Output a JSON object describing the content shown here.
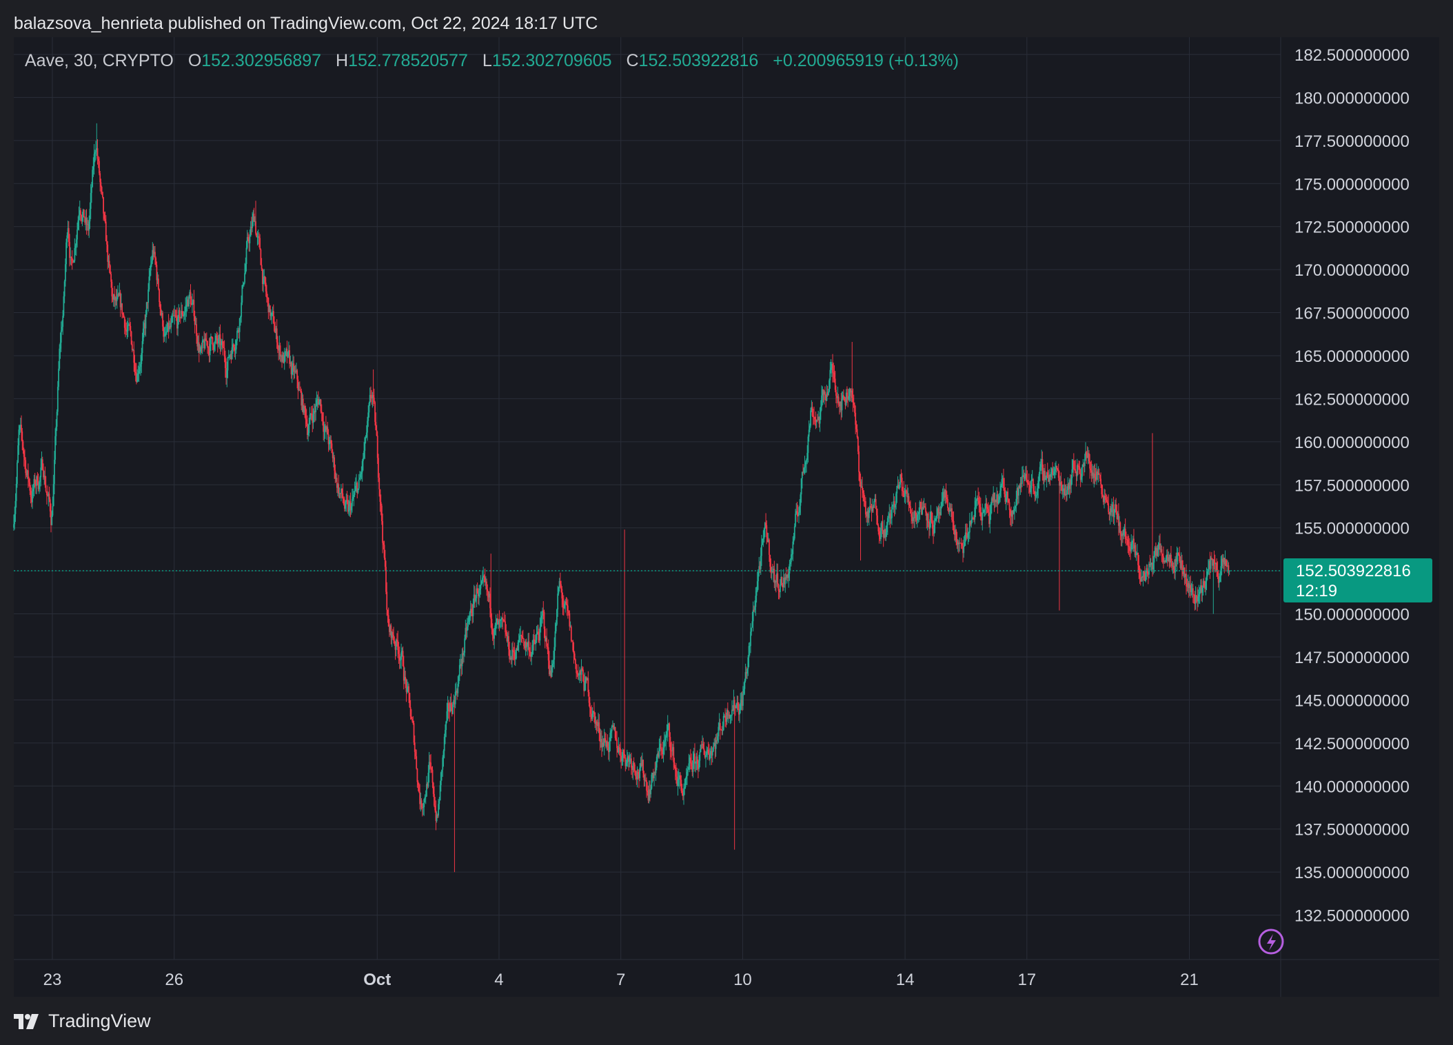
{
  "header": {
    "text": "balazsova_henrieta published on TradingView.com, Oct 22, 2024 18:17 UTC"
  },
  "legend": {
    "symbol": "Aave, 30, CRYPTO",
    "o_label": "O",
    "o_value": "152.302956897",
    "h_label": "H",
    "h_value": "152.778520577",
    "l_label": "L",
    "l_value": "152.302709605",
    "c_label": "C",
    "c_value": "152.503922816",
    "change": "+0.200965919 (+0.13%)"
  },
  "price_tag": {
    "price": "152.503922816",
    "countdown": "12:19",
    "color": "#089981"
  },
  "footer": {
    "brand": "TradingView"
  },
  "colors": {
    "up": "#22ab94",
    "down": "#f23645",
    "grid": "#2a2e39",
    "axis_text": "#d1d4dc",
    "background": "#181a21"
  },
  "icons": {
    "bottom_right": "lightning-bolt-icon"
  },
  "chart_data": {
    "type": "candlestick",
    "symbol": "Aave",
    "interval": "30",
    "ylim": [
      130.0,
      183.5
    ],
    "ytick_values": [
      132.5,
      135.0,
      137.5,
      140.0,
      142.5,
      145.0,
      147.5,
      150.0,
      152.5,
      155.0,
      157.5,
      160.0,
      162.5,
      165.0,
      167.5,
      170.0,
      172.5,
      175.0,
      177.5,
      180.0,
      182.5
    ],
    "ytick_labels": [
      "132.500000000",
      "135.000000000",
      "137.500000000",
      "140.000000000",
      "142.500000000",
      "145.000000000",
      "147.500000000",
      "150.000000000",
      "152.500000000",
      "155.000000000",
      "157.500000000",
      "160.000000000",
      "162.500000000",
      "165.000000000",
      "167.500000000",
      "170.000000000",
      "172.500000000",
      "175.000000000",
      "177.500000000",
      "180.000000000",
      "182.500000000"
    ],
    "xlim": [
      -0.95,
      30.25
    ],
    "xtick_values": [
      0,
      3,
      8,
      11,
      14,
      17,
      21,
      24,
      28
    ],
    "xtick_labels": [
      "23",
      "26",
      "Oct",
      "4",
      "7",
      "10",
      "14",
      "17",
      "21"
    ],
    "x_unit": "days since Sep 23, 2024",
    "last_price": 152.503922816,
    "price_path": [
      [
        -0.95,
        155.0
      ],
      [
        -0.8,
        160.5
      ],
      [
        -0.5,
        157.0
      ],
      [
        -0.2,
        158.5
      ],
      [
        0.0,
        155.5
      ],
      [
        0.1,
        160.0
      ],
      [
        0.2,
        165.0
      ],
      [
        0.3,
        168.0
      ],
      [
        0.4,
        173.0
      ],
      [
        0.5,
        170.0
      ],
      [
        0.7,
        174.5
      ],
      [
        0.9,
        172.0
      ],
      [
        1.1,
        177.5
      ],
      [
        1.3,
        172.0
      ],
      [
        1.5,
        168.0
      ],
      [
        1.8,
        167.0
      ],
      [
        2.1,
        164.5
      ],
      [
        2.3,
        166.5
      ],
      [
        2.5,
        171.0
      ],
      [
        2.8,
        166.0
      ],
      [
        3.1,
        166.5
      ],
      [
        3.4,
        168.5
      ],
      [
        3.7,
        165.0
      ],
      [
        4.0,
        166.0
      ],
      [
        4.3,
        164.5
      ],
      [
        4.6,
        167.0
      ],
      [
        4.8,
        171.0
      ],
      [
        5.0,
        173.0
      ],
      [
        5.3,
        168.0
      ],
      [
        5.6,
        165.5
      ],
      [
        6.0,
        163.5
      ],
      [
        6.3,
        161.0
      ],
      [
        6.6,
        162.5
      ],
      [
        7.0,
        158.0
      ],
      [
        7.3,
        155.5
      ],
      [
        7.6,
        157.5
      ],
      [
        7.9,
        162.5
      ],
      [
        8.1,
        157.0
      ],
      [
        8.3,
        149.0
      ],
      [
        8.6,
        148.0
      ],
      [
        8.9,
        143.0
      ],
      [
        9.1,
        139.0
      ],
      [
        9.3,
        141.0
      ],
      [
        9.5,
        138.0
      ],
      [
        9.7,
        143.0
      ],
      [
        9.9,
        145.0
      ],
      [
        10.2,
        148.5
      ],
      [
        10.5,
        151.5
      ],
      [
        10.8,
        150.0
      ],
      [
        11.0,
        149.0
      ],
      [
        11.3,
        147.5
      ],
      [
        11.6,
        148.5
      ],
      [
        11.9,
        148.0
      ],
      [
        12.1,
        149.5
      ],
      [
        12.3,
        146.5
      ],
      [
        12.5,
        151.5
      ],
      [
        12.7,
        149.5
      ],
      [
        12.9,
        147.0
      ],
      [
        13.2,
        145.5
      ],
      [
        13.5,
        143.0
      ],
      [
        13.8,
        142.5
      ],
      [
        14.1,
        142.0
      ],
      [
        14.4,
        141.5
      ],
      [
        14.7,
        140.0
      ],
      [
        15.0,
        142.0
      ],
      [
        15.2,
        143.0
      ],
      [
        15.4,
        140.5
      ],
      [
        15.6,
        139.5
      ],
      [
        15.8,
        141.0
      ],
      [
        16.1,
        142.0
      ],
      [
        16.4,
        143.0
      ],
      [
        16.7,
        145.0
      ],
      [
        17.0,
        145.0
      ],
      [
        17.2,
        148.0
      ],
      [
        17.4,
        152.5
      ],
      [
        17.6,
        154.5
      ],
      [
        17.8,
        152.0
      ],
      [
        18.1,
        152.0
      ],
      [
        18.3,
        154.5
      ],
      [
        18.5,
        158.0
      ],
      [
        18.7,
        162.0
      ],
      [
        18.9,
        161.5
      ],
      [
        19.2,
        164.0
      ],
      [
        19.5,
        162.5
      ],
      [
        19.7,
        163.5
      ],
      [
        19.9,
        158.0
      ],
      [
        20.1,
        155.5
      ],
      [
        20.3,
        156.0
      ],
      [
        20.6,
        155.0
      ],
      [
        20.9,
        157.5
      ],
      [
        21.2,
        156.0
      ],
      [
        21.5,
        156.5
      ],
      [
        21.8,
        155.0
      ],
      [
        22.1,
        156.5
      ],
      [
        22.4,
        153.0
      ],
      [
        22.6,
        155.0
      ],
      [
        22.8,
        156.5
      ],
      [
        23.1,
        155.5
      ],
      [
        23.4,
        157.0
      ],
      [
        23.7,
        156.5
      ],
      [
        24.0,
        158.0
      ],
      [
        24.3,
        157.5
      ],
      [
        24.6,
        158.5
      ],
      [
        24.9,
        157.5
      ],
      [
        25.2,
        158.5
      ],
      [
        25.5,
        159.0
      ],
      [
        25.8,
        158.0
      ],
      [
        26.0,
        157.0
      ],
      [
        26.3,
        155.0
      ],
      [
        26.6,
        153.5
      ],
      [
        26.9,
        152.0
      ],
      [
        27.2,
        153.5
      ],
      [
        27.5,
        154.0
      ],
      [
        27.8,
        153.5
      ],
      [
        28.0,
        151.5
      ],
      [
        28.2,
        151.0
      ],
      [
        28.4,
        152.0
      ],
      [
        28.6,
        153.0
      ],
      [
        28.8,
        152.5
      ],
      [
        29.0,
        152.5
      ]
    ],
    "spikes": [
      {
        "x": 1.1,
        "high": 178.5
      },
      {
        "x": 5.0,
        "high": 174.0
      },
      {
        "x": 7.9,
        "high": 164.2
      },
      {
        "x": 9.9,
        "low": 135.0
      },
      {
        "x": 14.1,
        "high": 154.9
      },
      {
        "x": 16.8,
        "low": 136.3
      },
      {
        "x": 19.7,
        "high": 165.8
      },
      {
        "x": 27.1,
        "high": 160.5
      },
      {
        "x": 28.6,
        "low": 150.0
      },
      {
        "x": 24.8,
        "low": 150.2
      },
      {
        "x": 10.8,
        "high": 153.5
      },
      {
        "x": 19.9,
        "low": 153.1
      }
    ]
  }
}
